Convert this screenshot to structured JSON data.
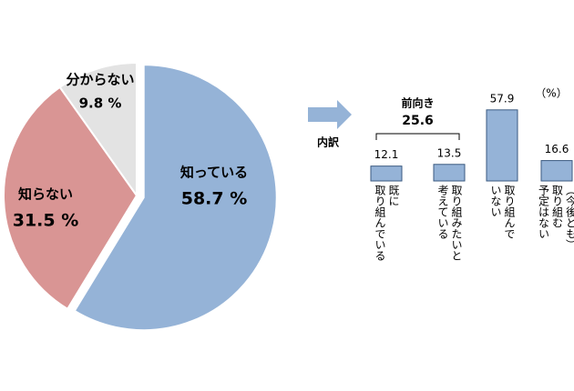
{
  "chart_data": [
    {
      "type": "pie",
      "categories": [
        "知っている",
        "知らない",
        "分からない"
      ],
      "values": [
        58.7,
        31.5,
        9.8
      ],
      "value_labels": [
        "58.7 %",
        "31.5 %",
        "9.8 %"
      ],
      "colors": [
        "#95b3d7",
        "#d99594",
        "#e3e3e3"
      ]
    },
    {
      "type": "bar",
      "title": "内訳",
      "unit": "（%）",
      "categories": [
        "既に\n取り組んでいる",
        "取り組みたいと\n考えている",
        "取り組んで\nいない",
        "（今後とも）\n取り組む\n予定はない"
      ],
      "values": [
        12.1,
        13.5,
        57.9,
        16.6
      ],
      "color": "#95b3d7",
      "bracket": {
        "label": "前向き",
        "value": 25.6,
        "color": "#e0201b"
      }
    }
  ]
}
